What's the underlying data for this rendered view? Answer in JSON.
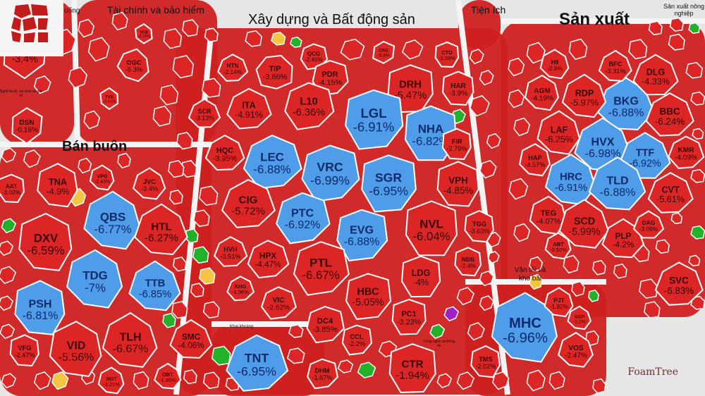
{
  "app": {
    "brand": "FoamTree"
  },
  "colors": {
    "down": "#dc2626",
    "floor": "#4f9de8",
    "up": "#22b22a",
    "ref": "#f4c542",
    "ceil": "#a020c0",
    "bg": "#e6e6e6",
    "gap": "#f2f2f2"
  },
  "groups": [
    {
      "label": "Dịch vụ lưu trú và ăn uống"
    },
    {
      "label": "Tài chính và bảo hiểm"
    },
    {
      "label": "Xây dựng và Bất động sản"
    },
    {
      "label": "Tiện ích"
    },
    {
      "label": "Sản xuất"
    },
    {
      "label": "Sản xuất nông nghiệp"
    },
    {
      "label": "Bán buôn"
    },
    {
      "label": "Nghệ thuật, vui chơi và giải trí"
    },
    {
      "label": "Khai khoáng"
    },
    {
      "label": "Vận tải và kho bãi"
    },
    {
      "label": "Công nghệ và thông tin"
    }
  ],
  "cells": [
    {
      "code": "DAH",
      "pct": "-3.4%",
      "s": "floor0"
    },
    {
      "code": "DSN",
      "pct": "-0.18%",
      "s": "down"
    },
    {
      "code": "OGC",
      "pct": "-5.3%",
      "s": "down"
    },
    {
      "code": "VCB",
      "pct": "-3.14%",
      "s": "down"
    },
    {
      "code": "TVB",
      "pct": "-3.51%",
      "s": "down"
    },
    {
      "code": "HTN",
      "pct": "-2.14%",
      "s": "down"
    },
    {
      "code": "TIP",
      "pct": "-3.66%",
      "s": "down"
    },
    {
      "code": "QCG",
      "pct": "-2.45%",
      "s": "down"
    },
    {
      "code": "CRE",
      "pct": "-3.3%",
      "s": "down"
    },
    {
      "code": "CTD",
      "pct": "-2.28%",
      "s": "down"
    },
    {
      "code": "PDR",
      "pct": "-4.15%",
      "s": "down"
    },
    {
      "code": "DRH",
      "pct": "-5.47%",
      "s": "down"
    },
    {
      "code": "HAR",
      "pct": "-3.9%",
      "s": "down"
    },
    {
      "code": "ITA",
      "pct": "-4.91%",
      "s": "down"
    },
    {
      "code": "L10",
      "pct": "-6.36%",
      "s": "down"
    },
    {
      "code": "SCR",
      "pct": "-3.13%",
      "s": "down"
    },
    {
      "code": "LGL",
      "pct": "-6.91%",
      "s": "floor"
    },
    {
      "code": "NHA",
      "pct": "-6.82%",
      "s": "floor"
    },
    {
      "code": "FIR",
      "pct": "-2.79%",
      "s": "down"
    },
    {
      "code": "HQC",
      "pct": "-3.95%",
      "s": "down"
    },
    {
      "code": "LEC",
      "pct": "-6.88%",
      "s": "floor"
    },
    {
      "code": "VRC",
      "pct": "-6.99%",
      "s": "floor"
    },
    {
      "code": "SGR",
      "pct": "-6.95%",
      "s": "floor"
    },
    {
      "code": "VPH",
      "pct": "-4.85%",
      "s": "down"
    },
    {
      "code": "CIG",
      "pct": "-5.72%",
      "s": "down"
    },
    {
      "code": "PTC",
      "pct": "-6.92%",
      "s": "floor"
    },
    {
      "code": "EVG",
      "pct": "-6.88%",
      "s": "floor"
    },
    {
      "code": "NVL",
      "pct": "-6.04%",
      "s": "down"
    },
    {
      "code": "TGG",
      "pct": "-3.63%",
      "s": "down"
    },
    {
      "code": "HVH",
      "pct": "-3.51%",
      "s": "down"
    },
    {
      "code": "HPX",
      "pct": "-4.47%",
      "s": "down"
    },
    {
      "code": "PTL",
      "pct": "-6.67%",
      "s": "down"
    },
    {
      "code": "LDG",
      "pct": "-4%",
      "s": "down"
    },
    {
      "code": "NBB",
      "pct": "-2.4%",
      "s": "down"
    },
    {
      "code": "KHG",
      "pct": "-1.96%",
      "s": "down"
    },
    {
      "code": "VIC",
      "pct": "-2.62%",
      "s": "down"
    },
    {
      "code": "HBC",
      "pct": "-5.05%",
      "s": "down"
    },
    {
      "code": "PC1",
      "pct": "-3.23%",
      "s": "down"
    },
    {
      "code": "DC4",
      "pct": "-3.85%",
      "s": "down"
    },
    {
      "code": "CCL",
      "pct": "-2.2%",
      "s": "down"
    },
    {
      "code": "TNT",
      "pct": "-6.95%",
      "s": "floor"
    },
    {
      "code": "DHM",
      "pct": "-1.67%",
      "s": "down"
    },
    {
      "code": "CTR",
      "pct": "-1.94%",
      "s": "down"
    },
    {
      "code": "TNA",
      "pct": "-4.9%",
      "s": "down"
    },
    {
      "code": "VPG",
      "pct": "-2.43%",
      "s": "down"
    },
    {
      "code": "JVC",
      "pct": "-3.4%",
      "s": "down"
    },
    {
      "code": "AAT",
      "pct": "-3.02%",
      "s": "down"
    },
    {
      "code": "QBS",
      "pct": "-6.77%",
      "s": "floor"
    },
    {
      "code": "DXV",
      "pct": "-6.59%",
      "s": "down"
    },
    {
      "code": "HTL",
      "pct": "-6.27%",
      "s": "down"
    },
    {
      "code": "TDG",
      "pct": "-7%",
      "s": "floor"
    },
    {
      "code": "TTB",
      "pct": "-6.85%",
      "s": "floor"
    },
    {
      "code": "PSH",
      "pct": "-6.81%",
      "s": "floor"
    },
    {
      "code": "TLH",
      "pct": "-6.67%",
      "s": "down"
    },
    {
      "code": "SMC",
      "pct": "-4.06%",
      "s": "down"
    },
    {
      "code": "VID",
      "pct": "-5.56%",
      "s": "down"
    },
    {
      "code": "VFG",
      "pct": "-2.47%",
      "s": "down"
    },
    {
      "code": "SGT",
      "pct": "-3.21%",
      "s": "down"
    },
    {
      "code": "DBT",
      "pct": "-1.85%",
      "s": "down"
    },
    {
      "code": "BKG",
      "pct": "-6.88%",
      "s": "floor"
    },
    {
      "code": "HVX",
      "pct": "-6.98%",
      "s": "floor"
    },
    {
      "code": "TTF",
      "pct": "-6.92%",
      "s": "floor"
    },
    {
      "code": "HRC",
      "pct": "-6.91%",
      "s": "floor"
    },
    {
      "code": "TLD",
      "pct": "-6.88%",
      "s": "floor"
    },
    {
      "code": "HII",
      "pct": "-2.8%",
      "s": "down"
    },
    {
      "code": "AGM",
      "pct": "-4.19%",
      "s": "down"
    },
    {
      "code": "RDP",
      "pct": "-5.97%",
      "s": "down"
    },
    {
      "code": "BFC",
      "pct": "-3.31%",
      "s": "down"
    },
    {
      "code": "DLG",
      "pct": "-4.33%",
      "s": "down"
    },
    {
      "code": "BBC",
      "pct": "-6.24%",
      "s": "down"
    },
    {
      "code": "LAF",
      "pct": "-6.25%",
      "s": "down"
    },
    {
      "code": "KMR",
      "pct": "-4.09%",
      "s": "down"
    },
    {
      "code": "HAP",
      "pct": "-4.57%",
      "s": "down"
    },
    {
      "code": "CVT",
      "pct": "-5.61%",
      "s": "down"
    },
    {
      "code": "TEG",
      "pct": "-4.07%",
      "s": "down"
    },
    {
      "code": "SCD",
      "pct": "-5.99%",
      "s": "down"
    },
    {
      "code": "PLP",
      "pct": "-4.2%",
      "s": "down"
    },
    {
      "code": "ABT",
      "pct": "-2.52%",
      "s": "down"
    },
    {
      "code": "DAG",
      "pct": "-3.09%",
      "s": "down"
    },
    {
      "code": "SVC",
      "pct": "-6.83%",
      "s": "down"
    },
    {
      "code": "MHC",
      "pct": "-6.96%",
      "s": "floor"
    },
    {
      "code": "PJT",
      "pct": "-1.82%",
      "s": "down"
    },
    {
      "code": "GSP",
      "pct": "-1.2%",
      "s": "down"
    },
    {
      "code": "VOS",
      "pct": "-2.47%",
      "s": "down"
    },
    {
      "code": "TMS",
      "pct": "-2.02%",
      "s": "down"
    }
  ]
}
